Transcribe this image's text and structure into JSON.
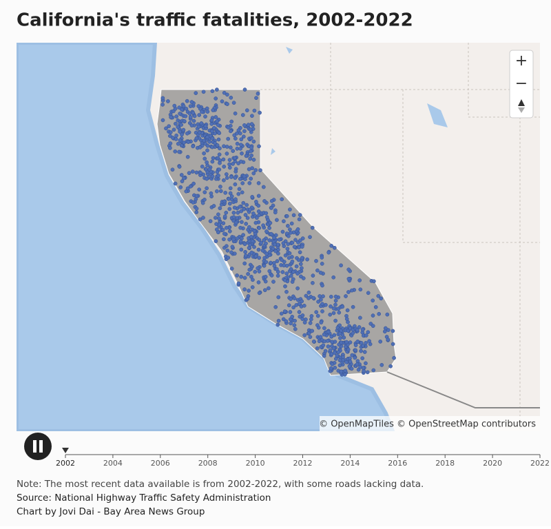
{
  "header": {
    "title": "California's traffic fatalities, 2002-2022"
  },
  "map": {
    "attribution": "© OpenMapTiles © OpenStreetMap contributors",
    "zoom_in": "+",
    "zoom_out": "−"
  },
  "timeline": {
    "ticks": [
      2002,
      2004,
      2006,
      2008,
      2010,
      2012,
      2014,
      2016,
      2018,
      2020,
      2022
    ],
    "current": 2002
  },
  "footer": {
    "note": "Note: The most recent data available is from 2002-2022, with some roads lacking data.",
    "source": "Source: National Highway Traffic Safety Administration",
    "credit": "Chart by Jovi Dai - Bay Area News Group"
  }
}
